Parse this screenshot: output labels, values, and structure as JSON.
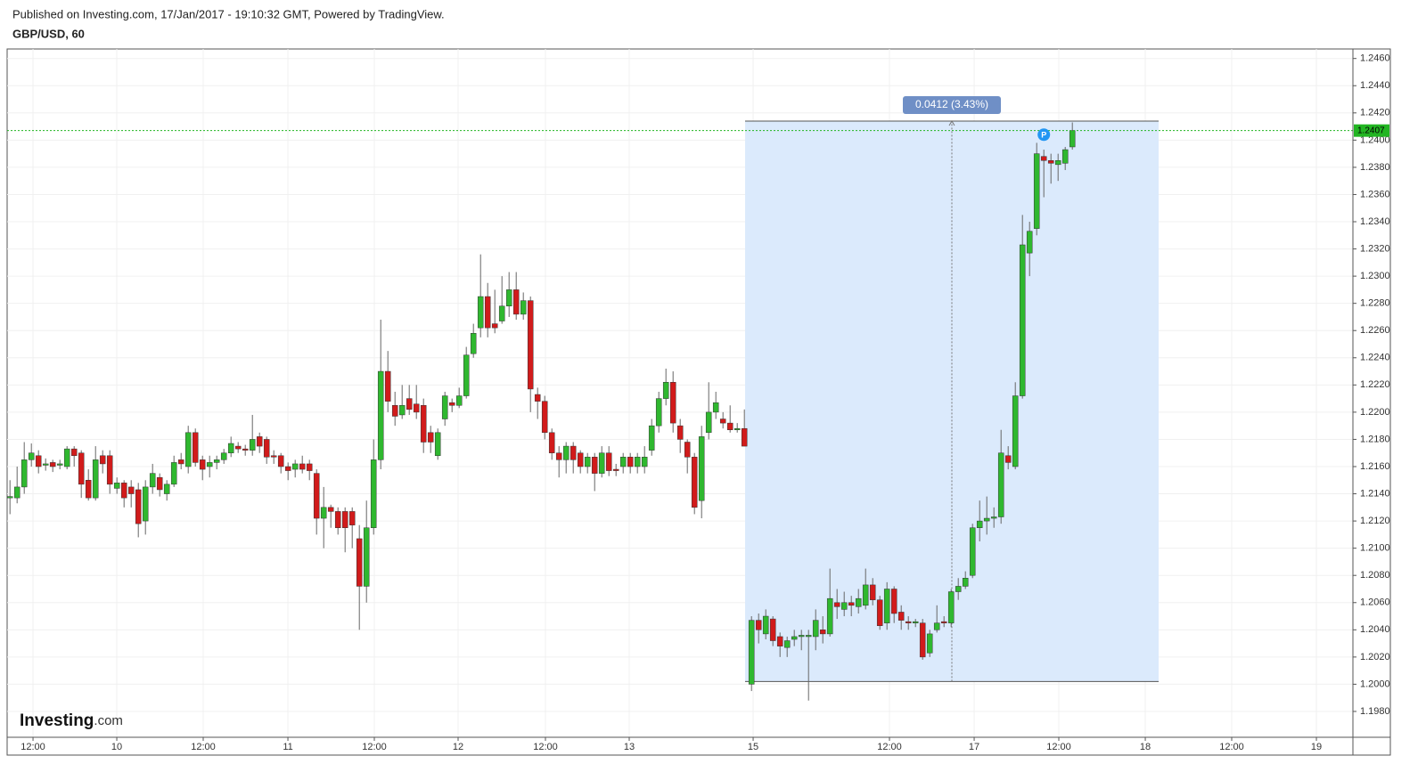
{
  "header": {
    "published": "Published on Investing.com, 17/Jan/2017 - 19:10:32 GMT, Powered by TradingView.",
    "symbol": "GBP/USD, 60"
  },
  "logo": {
    "name": "Investing",
    "suffix": ".com"
  },
  "chart_data": {
    "type": "candlestick",
    "up_color": "#2fb82f",
    "down_color": "#d11b1b",
    "grid": true,
    "xlim": [
      -0.4,
      188.35
    ],
    "xticks": [
      {
        "value": 3.23,
        "label": "12:00"
      },
      {
        "value": 14.98,
        "label": "10"
      },
      {
        "value": 27.1,
        "label": "12:00"
      },
      {
        "value": 38.98,
        "label": "11"
      },
      {
        "value": 51.1,
        "label": "12:00"
      },
      {
        "value": 62.85,
        "label": "12"
      },
      {
        "value": 75.1,
        "label": "12:00"
      },
      {
        "value": 86.85,
        "label": "13"
      },
      {
        "value": 104.23,
        "label": "15"
      },
      {
        "value": 123.35,
        "label": "12:00"
      },
      {
        "value": 135.23,
        "label": "17"
      },
      {
        "value": 147.1,
        "label": "12:00"
      },
      {
        "value": 159.23,
        "label": "18"
      },
      {
        "value": 171.35,
        "label": "12:00"
      },
      {
        "value": 183.23,
        "label": "19"
      }
    ],
    "ylim": [
      1.1961,
      1.2467
    ],
    "yticks": [
      {
        "value": 1.198,
        "label": "1.1980"
      },
      {
        "value": 1.2,
        "label": "1.2000"
      },
      {
        "value": 1.202,
        "label": "1.2020"
      },
      {
        "value": 1.204,
        "label": "1.2040"
      },
      {
        "value": 1.206,
        "label": "1.2060"
      },
      {
        "value": 1.208,
        "label": "1.2080"
      },
      {
        "value": 1.21,
        "label": "1.2100"
      },
      {
        "value": 1.212,
        "label": "1.2120"
      },
      {
        "value": 1.214,
        "label": "1.2140"
      },
      {
        "value": 1.216,
        "label": "1.2160"
      },
      {
        "value": 1.218,
        "label": "1.2180"
      },
      {
        "value": 1.22,
        "label": "1.2200"
      },
      {
        "value": 1.222,
        "label": "1.2220"
      },
      {
        "value": 1.224,
        "label": "1.2240"
      },
      {
        "value": 1.226,
        "label": "1.2260"
      },
      {
        "value": 1.228,
        "label": "1.2280"
      },
      {
        "value": 1.23,
        "label": "1.2300"
      },
      {
        "value": 1.232,
        "label": "1.2320"
      },
      {
        "value": 1.234,
        "label": "1.2340"
      },
      {
        "value": 1.236,
        "label": "1.2360"
      },
      {
        "value": 1.238,
        "label": "1.2380"
      },
      {
        "value": 1.24,
        "label": "1.2400"
      },
      {
        "value": 1.242,
        "label": "1.2420"
      },
      {
        "value": 1.244,
        "label": "1.2440"
      },
      {
        "value": 1.246,
        "label": "1.2460"
      }
    ],
    "open": [
      1.2137,
      1.2137,
      1.2145,
      1.2165,
      1.2168,
      1.2161,
      1.2163,
      1.2161,
      1.216,
      1.2173,
      1.217,
      1.215,
      1.2137,
      1.2168,
      1.2168,
      1.2144,
      1.2148,
      1.2145,
      1.2143,
      1.212,
      1.2145,
      1.2152,
      1.214,
      1.2147,
      1.2165,
      1.216,
      1.2185,
      1.2165,
      1.216,
      1.2163,
      1.2165,
      1.217,
      1.2175,
      1.2173,
      1.2172,
      1.2182,
      1.218,
      1.2168,
      1.2168,
      1.216,
      1.2158,
      1.2162,
      1.2162,
      1.2155,
      1.2122,
      1.213,
      1.2127,
      1.2127,
      1.2127,
      1.2107,
      1.2072,
      1.2115,
      1.2165,
      1.223,
      1.2205,
      1.2198,
      1.221,
      1.2206,
      1.2205,
      1.2185,
      1.2168,
      1.2195,
      1.2207,
      1.2205,
      1.2212,
      1.2243,
      1.2262,
      1.2285,
      1.2265,
      1.2267,
      1.2278,
      1.229,
      1.2272,
      1.2282,
      1.2213,
      1.2208,
      1.2185,
      1.217,
      1.2165,
      1.2175,
      1.217,
      1.216,
      1.2167,
      1.2155,
      1.217,
      1.2158,
      1.216,
      1.2167,
      1.216,
      1.216,
      1.2172,
      1.219,
      1.221,
      1.2222,
      1.219,
      1.2178,
      1.2167,
      1.2135,
      1.2185,
      1.22,
      1.2195,
      1.2192,
      1.2187,
      1.2188,
      1.2,
      1.2047,
      1.2037,
      1.2048,
      1.2035,
      1.2027,
      1.2033,
      1.2035,
      1.2035,
      1.2035,
      1.204,
      1.2037,
      1.206,
      1.2055,
      1.206,
      1.2057,
      1.2058,
      1.2073,
      1.2062,
      1.2045,
      1.207,
      1.2053,
      1.2046,
      1.2045,
      1.2045,
      1.2023,
      1.204,
      1.2046,
      1.2045,
      1.2068,
      1.2072,
      1.208,
      1.2115,
      1.212,
      1.2122,
      1.2123,
      1.2168,
      1.216,
      1.2212,
      1.2317,
      1.2335,
      1.2388,
      1.2385,
      1.2382,
      1.2383,
      1.2395
    ],
    "high": [
      1.215,
      1.216,
      1.2178,
      1.2177,
      1.2172,
      1.2166,
      1.2165,
      1.2165,
      1.2175,
      1.2175,
      1.2172,
      1.2158,
      1.2175,
      1.2172,
      1.2172,
      1.2152,
      1.215,
      1.215,
      1.2148,
      1.215,
      1.2162,
      1.2155,
      1.215,
      1.2168,
      1.217,
      1.219,
      1.2188,
      1.2168,
      1.2168,
      1.2168,
      1.2173,
      1.2182,
      1.2178,
      1.2176,
      1.2198,
      1.2185,
      1.2182,
      1.2172,
      1.217,
      1.2163,
      1.2165,
      1.2168,
      1.2165,
      1.2158,
      1.2145,
      1.2132,
      1.213,
      1.213,
      1.213,
      1.2117,
      1.2135,
      1.218,
      1.2268,
      1.2245,
      1.2215,
      1.222,
      1.222,
      1.222,
      1.221,
      1.219,
      1.2188,
      1.2215,
      1.221,
      1.2218,
      1.2248,
      1.2265,
      1.2316,
      1.2295,
      1.229,
      1.23,
      1.2303,
      1.2303,
      1.2288,
      1.2285,
      1.2218,
      1.2212,
      1.2188,
      1.2175,
      1.2178,
      1.2178,
      1.2172,
      1.217,
      1.217,
      1.2175,
      1.2175,
      1.2162,
      1.217,
      1.217,
      1.217,
      1.2175,
      1.2195,
      1.2215,
      1.2232,
      1.223,
      1.2195,
      1.218,
      1.217,
      1.219,
      1.2222,
      1.2215,
      1.22,
      1.2205,
      1.2192,
      1.2202,
      1.205,
      1.2052,
      1.2055,
      1.205,
      1.2038,
      1.2035,
      1.204,
      1.204,
      1.204,
      1.2055,
      1.205,
      1.2085,
      1.207,
      1.2068,
      1.2065,
      1.207,
      1.2085,
      1.2078,
      1.2065,
      1.2075,
      1.2072,
      1.2058,
      1.205,
      1.2048,
      1.2048,
      1.204,
      1.2058,
      1.205,
      1.207,
      1.2078,
      1.2083,
      1.2118,
      1.2135,
      1.2138,
      1.213,
      1.2187,
      1.2175,
      1.2222,
      1.2345,
      1.234,
      1.2398,
      1.2393,
      1.239,
      1.239,
      1.2395,
      1.2413
    ],
    "low": [
      1.2125,
      1.2133,
      1.214,
      1.216,
      1.2155,
      1.2157,
      1.2156,
      1.2158,
      1.2158,
      1.216,
      1.2137,
      1.2135,
      1.2135,
      1.2155,
      1.214,
      1.214,
      1.213,
      1.213,
      1.2108,
      1.211,
      1.214,
      1.2138,
      1.2135,
      1.2145,
      1.2158,
      1.2155,
      1.216,
      1.215,
      1.2152,
      1.2158,
      1.2162,
      1.2167,
      1.217,
      1.2168,
      1.2168,
      1.217,
      1.2162,
      1.2162,
      1.2155,
      1.215,
      1.2152,
      1.2155,
      1.215,
      1.211,
      1.21,
      1.2115,
      1.211,
      1.2097,
      1.21,
      1.204,
      1.206,
      1.211,
      1.2158,
      1.22,
      1.219,
      1.2195,
      1.2198,
      1.2195,
      1.217,
      1.217,
      1.2165,
      1.219,
      1.22,
      1.2203,
      1.221,
      1.224,
      1.2255,
      1.2255,
      1.2258,
      1.2265,
      1.227,
      1.2268,
      1.2268,
      1.22,
      1.2195,
      1.218,
      1.2165,
      1.2152,
      1.2155,
      1.2155,
      1.2155,
      1.2155,
      1.2142,
      1.2152,
      1.2153,
      1.2153,
      1.2155,
      1.2155,
      1.2155,
      1.2155,
      1.2168,
      1.2185,
      1.2205,
      1.2185,
      1.217,
      1.2155,
      1.2125,
      1.2122,
      1.218,
      1.2195,
      1.2188,
      1.2185,
      1.2185,
      1.2175,
      1.1995,
      1.203,
      1.2033,
      1.2028,
      1.202,
      1.202,
      1.2028,
      1.2025,
      1.1988,
      1.2025,
      1.203,
      1.2035,
      1.2048,
      1.205,
      1.205,
      1.2052,
      1.2055,
      1.2058,
      1.204,
      1.204,
      1.2045,
      1.204,
      1.204,
      1.2042,
      1.2018,
      1.202,
      1.2038,
      1.2042,
      1.2042,
      1.2062,
      1.207,
      1.2078,
      1.2105,
      1.211,
      1.2115,
      1.2118,
      1.2158,
      1.2158,
      1.221,
      1.23,
      1.233,
      1.2358,
      1.2368,
      1.237,
      1.2378,
      1.2393
    ],
    "close": [
      1.2138,
      1.2145,
      1.2165,
      1.217,
      1.216,
      1.2162,
      1.216,
      1.2162,
      1.2173,
      1.2168,
      1.2147,
      1.2137,
      1.2165,
      1.2162,
      1.2147,
      1.2148,
      1.2137,
      1.214,
      1.2118,
      1.2145,
      1.2155,
      1.2143,
      1.2147,
      1.2163,
      1.2162,
      1.2185,
      1.2163,
      1.2158,
      1.2163,
      1.2165,
      1.217,
      1.2177,
      1.2173,
      1.2172,
      1.218,
      1.2175,
      1.2167,
      1.2167,
      1.216,
      1.2157,
      1.2162,
      1.2158,
      1.2157,
      1.2122,
      1.213,
      1.2127,
      1.2115,
      1.2115,
      1.2117,
      1.2072,
      1.2115,
      1.2165,
      1.223,
      1.2208,
      1.2197,
      1.2205,
      1.2202,
      1.22,
      1.2178,
      1.2178,
      1.2185,
      1.2212,
      1.2205,
      1.2212,
      1.2242,
      1.2258,
      1.2285,
      1.2262,
      1.2262,
      1.2278,
      1.229,
      1.2272,
      1.2282,
      1.2217,
      1.2208,
      1.2185,
      1.217,
      1.2165,
      1.2175,
      1.2165,
      1.216,
      1.2167,
      1.2155,
      1.217,
      1.2157,
      1.2157,
      1.2167,
      1.216,
      1.2167,
      1.2167,
      1.219,
      1.221,
      1.2222,
      1.2192,
      1.218,
      1.2167,
      1.213,
      1.2182,
      1.22,
      1.2207,
      1.2192,
      1.2187,
      1.2188,
      1.2175,
      1.2047,
      1.204,
      1.205,
      1.2032,
      1.2028,
      1.2032,
      1.2035,
      1.2036,
      1.2036,
      1.2047,
      1.2037,
      1.2063,
      1.2057,
      1.206,
      1.2058,
      1.2063,
      1.2073,
      1.2062,
      1.2043,
      1.207,
      1.2052,
      1.2047,
      1.2045,
      1.2046,
      1.202,
      1.2037,
      1.2045,
      1.2045,
      1.2068,
      1.2072,
      1.2078,
      1.2115,
      1.212,
      1.2122,
      1.2123,
      1.217,
      1.2163,
      1.2212,
      1.2323,
      1.2333,
      1.239,
      1.2385,
      1.2383,
      1.2385,
      1.2393,
      1.2407
    ],
    "measure": {
      "from": 1.2002,
      "to": 1.2414,
      "x_start": 103.1,
      "x_end": 161.1,
      "x_mid": 132.1,
      "label": "0.0412 (3.43%)",
      "color": "#dbeafc"
    },
    "last": {
      "value": 1.2407,
      "label": "1.2407",
      "color": "#22b522"
    },
    "marker": {
      "label": "P",
      "x": 145,
      "value": 1.2404,
      "color": "#2196f3"
    }
  }
}
